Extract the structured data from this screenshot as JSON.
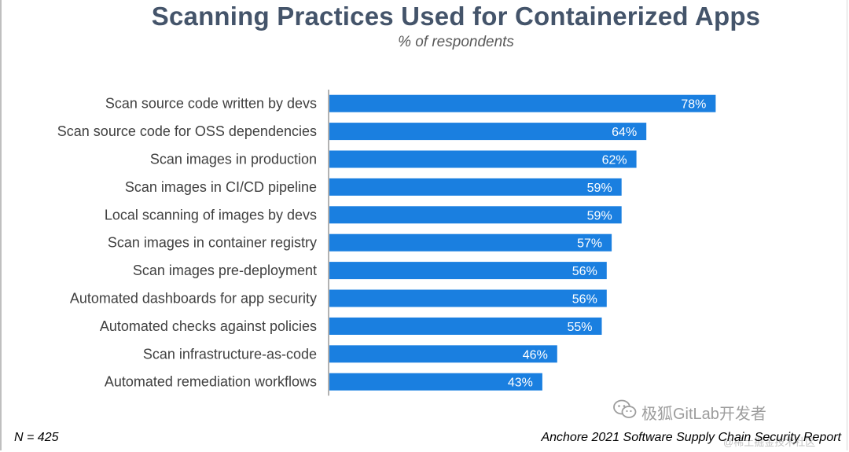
{
  "chart_data": {
    "type": "bar",
    "orientation": "horizontal",
    "title": "Scanning Practices Used for Containerized Apps",
    "subtitle": "% of respondents",
    "categories": [
      "Scan source code written by devs",
      "Scan source code for OSS dependencies",
      "Scan images in production",
      "Scan images in CI/CD pipeline",
      "Local scanning of images by devs",
      "Scan images in container registry",
      "Scan images pre-deployment",
      "Automated dashboards for app security",
      "Automated checks against policies",
      "Scan infrastructure-as-code",
      "Automated remediation workflows"
    ],
    "values": [
      78,
      64,
      62,
      59,
      59,
      57,
      56,
      56,
      55,
      46,
      43
    ],
    "value_labels": [
      "78%",
      "64%",
      "62%",
      "59%",
      "59%",
      "57%",
      "56%",
      "56%",
      "55%",
      "46%",
      "43%"
    ],
    "xlim": [
      0,
      100
    ],
    "bar_color": "#1a7fe0",
    "grid": false,
    "legend": "none"
  },
  "footer": {
    "sample_size": "N = 425",
    "source": "Anchore 2021 Software Supply Chain Security Report"
  },
  "watermark": {
    "text": "极狐GitLab开发者",
    "sub_text": "@稀土掘金技术社区",
    "icon": "wechat-icon"
  }
}
